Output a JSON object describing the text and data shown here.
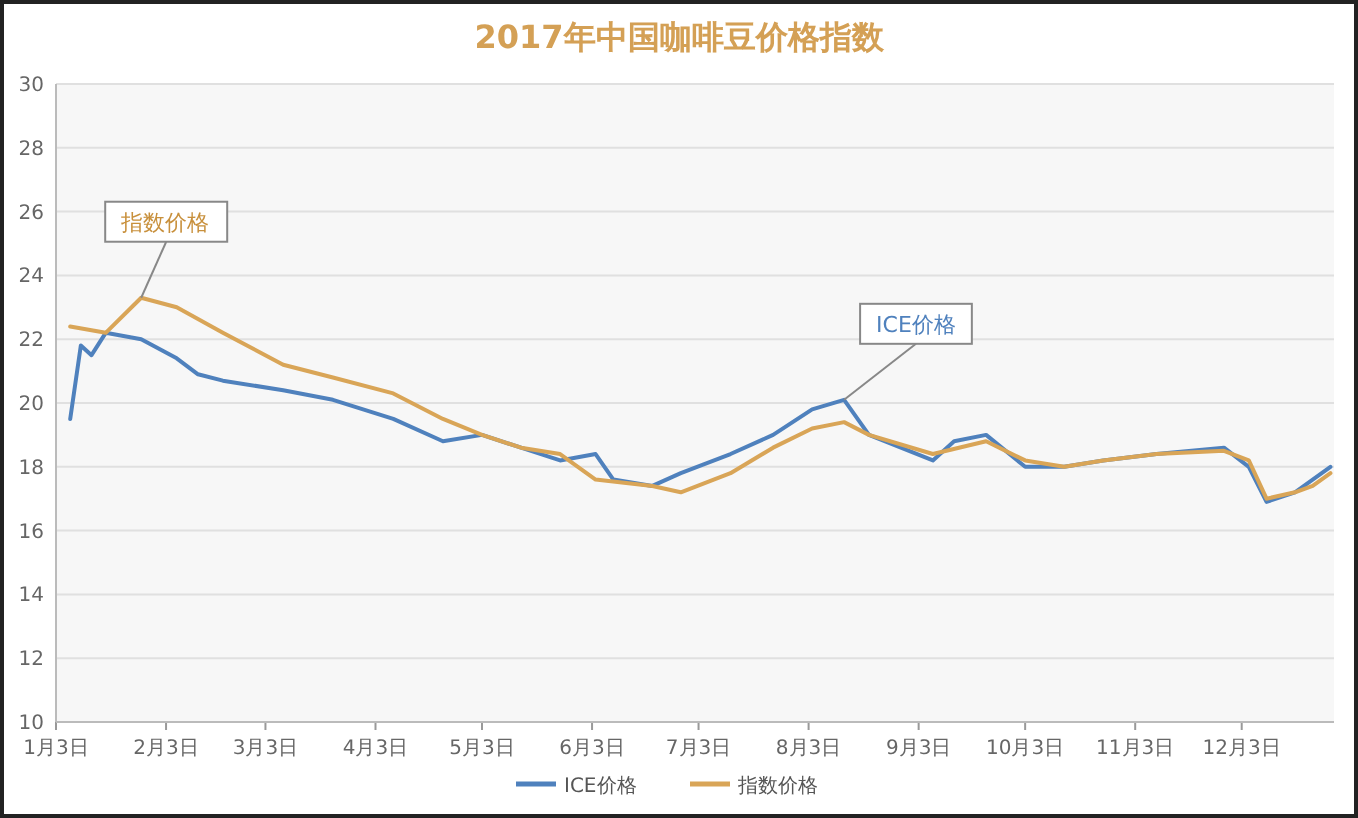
{
  "chart_data": {
    "type": "line",
    "title": "2017年中国咖啡豆价格指数",
    "xlim": [
      "--01-03",
      "--12-29"
    ],
    "xticks": [
      {
        "value": "--01-03",
        "label": "1月3日"
      },
      {
        "value": "--02-03",
        "label": "2月3日"
      },
      {
        "value": "--03-03",
        "label": "3月3日"
      },
      {
        "value": "--04-03",
        "label": "4月3日"
      },
      {
        "value": "--05-03",
        "label": "5月3日"
      },
      {
        "value": "--06-03",
        "label": "6月3日"
      },
      {
        "value": "--07-03",
        "label": "7月3日"
      },
      {
        "value": "--08-03",
        "label": "8月3日"
      },
      {
        "value": "--09-03",
        "label": "9月3日"
      },
      {
        "value": "--10-03",
        "label": "10月3日"
      },
      {
        "value": "--11-03",
        "label": "11月3日"
      },
      {
        "value": "--12-03",
        "label": "12月3日"
      }
    ],
    "ylim": [
      10,
      30
    ],
    "yticks": [
      10,
      12,
      14,
      16,
      18,
      20,
      22,
      24,
      26,
      28,
      30
    ],
    "grid": "y",
    "legend": "bottom",
    "marker": "none",
    "line_style": "solid",
    "series": [
      {
        "name": "ICE价格",
        "color": "#4f81bd",
        "x": [
          "--01-07",
          "--01-10",
          "--01-13",
          "--01-17",
          "--01-27",
          "--02-06",
          "--02-12",
          "--02-19",
          "--03-08",
          "--03-22",
          "--04-08",
          "--04-22",
          "--05-03",
          "--05-14",
          "--05-25",
          "--06-04",
          "--06-09",
          "--06-20",
          "--06-28",
          "--07-12",
          "--07-24",
          "--08-04",
          "--08-13",
          "--08-20",
          "--09-07",
          "--09-13",
          "--09-22",
          "--10-03",
          "--10-14",
          "--10-25",
          "--11-09",
          "--11-28",
          "--12-05",
          "--12-10",
          "--12-18",
          "--12-23",
          "--12-28"
        ],
        "values": [
          19.5,
          21.8,
          21.5,
          22.2,
          22.0,
          21.4,
          20.9,
          20.7,
          20.4,
          20.1,
          19.5,
          18.8,
          19.0,
          18.6,
          18.2,
          18.4,
          17.6,
          17.4,
          17.8,
          18.4,
          19.0,
          19.8,
          20.1,
          19.0,
          18.2,
          18.8,
          19.0,
          18.0,
          18.0,
          18.2,
          18.4,
          18.6,
          18.0,
          16.9,
          17.2,
          17.6,
          18.0
        ]
      },
      {
        "name": "指数价格",
        "color": "#d9a557",
        "x": [
          "--01-07",
          "--01-17",
          "--01-27",
          "--02-06",
          "--02-19",
          "--03-08",
          "--03-22",
          "--04-08",
          "--04-22",
          "--05-03",
          "--05-14",
          "--05-25",
          "--06-04",
          "--06-20",
          "--06-28",
          "--07-12",
          "--07-24",
          "--08-04",
          "--08-13",
          "--08-20",
          "--09-07",
          "--09-22",
          "--10-03",
          "--10-14",
          "--10-25",
          "--11-09",
          "--11-28",
          "--12-05",
          "--12-10",
          "--12-18",
          "--12-23",
          "--12-28"
        ],
        "values": [
          22.4,
          22.2,
          23.3,
          23.0,
          22.2,
          21.2,
          20.8,
          20.3,
          19.5,
          19.0,
          18.6,
          18.4,
          17.6,
          17.4,
          17.2,
          17.8,
          18.6,
          19.2,
          19.4,
          19.0,
          18.4,
          18.8,
          18.2,
          18.0,
          18.2,
          18.4,
          18.5,
          18.2,
          17.0,
          17.2,
          17.4,
          17.8
        ]
      }
    ],
    "annotations": [
      {
        "text": "指数价格",
        "x": "--01-27",
        "y": 23.3
      },
      {
        "text": "ICE价格",
        "x": "--08-13",
        "y": 20.1
      }
    ]
  }
}
